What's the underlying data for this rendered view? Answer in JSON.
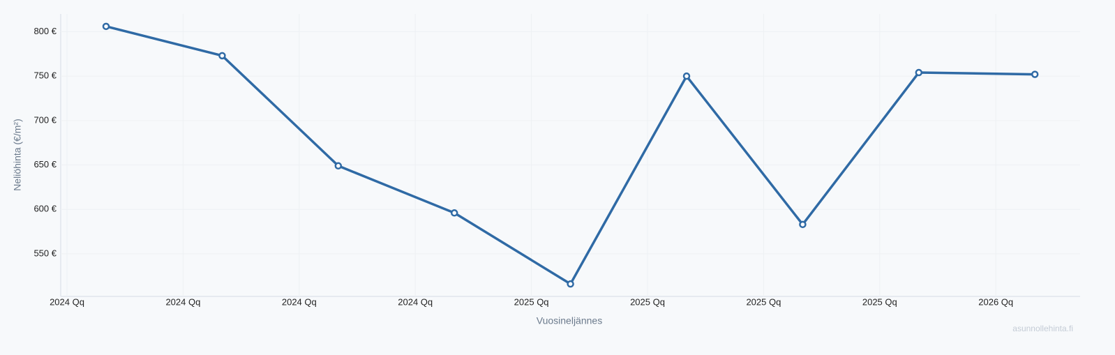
{
  "chart_data": {
    "type": "line",
    "x_label": "Vuosineljännes",
    "y_label": "Neliöhinta (€/m²)",
    "watermark": "asunnollehinta.fi",
    "categories": [
      "2024 Qq",
      "2024 Qq",
      "2024 Qq",
      "2024 Qq",
      "2025 Qq",
      "2025 Qq",
      "2025 Qq",
      "2025 Qq",
      "2026 Qq"
    ],
    "series": [
      {
        "name": "Neliöhinta",
        "color": "#2f6aa5",
        "values": [
          806,
          773,
          649,
          596,
          516,
          750,
          583,
          754,
          752
        ]
      }
    ],
    "ylim": [
      502,
      820
    ],
    "yticks": [
      {
        "value": 550,
        "label": "550 €"
      },
      {
        "value": 600,
        "label": "600 €"
      },
      {
        "value": 650,
        "label": "650 €"
      },
      {
        "value": 700,
        "label": "700 €"
      },
      {
        "value": 750,
        "label": "750 €"
      },
      {
        "value": 800,
        "label": "800 €"
      }
    ],
    "grid": true
  }
}
